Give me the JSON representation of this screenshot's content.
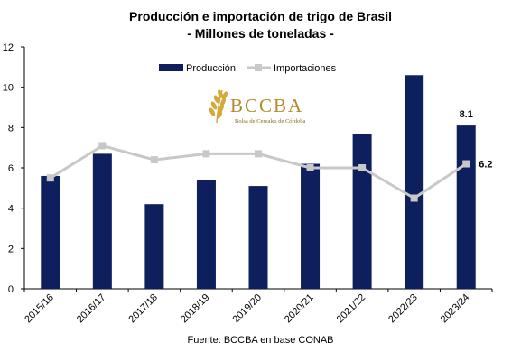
{
  "chart_data": {
    "type": "bar+line",
    "title": "Producción e importación de trigo de Brasil",
    "subtitle": "- Millones de toneladas -",
    "categories": [
      "2015/16",
      "2016/17",
      "2017/18",
      "2018/19",
      "2019/20",
      "2020/21",
      "2021/22",
      "2022/23",
      "2023/24"
    ],
    "series": [
      {
        "name": "Producción",
        "kind": "bar",
        "color": "#0d1f5c",
        "values": [
          5.6,
          6.7,
          4.2,
          5.4,
          5.1,
          6.2,
          7.7,
          10.6,
          8.1
        ]
      },
      {
        "name": "Importaciones",
        "kind": "line",
        "color": "#c8c8c8",
        "values": [
          5.5,
          7.1,
          6.4,
          6.7,
          6.7,
          6.0,
          6.0,
          4.5,
          6.2
        ]
      }
    ],
    "ylim": [
      0,
      12
    ],
    "yticks": [
      0,
      2,
      4,
      6,
      8,
      10,
      12
    ],
    "data_labels": [
      {
        "series": "Producción",
        "category": "2023/24",
        "text": "8.1"
      },
      {
        "series": "Importaciones",
        "category": "2023/24",
        "text": "6.2"
      }
    ],
    "legend_position": "top",
    "grid": false
  },
  "logo": {
    "name": "BCCBA",
    "tagline": "Bolsa de Cereales de Córdoba"
  },
  "source": "Fuente: BCCBA en base CONAB"
}
